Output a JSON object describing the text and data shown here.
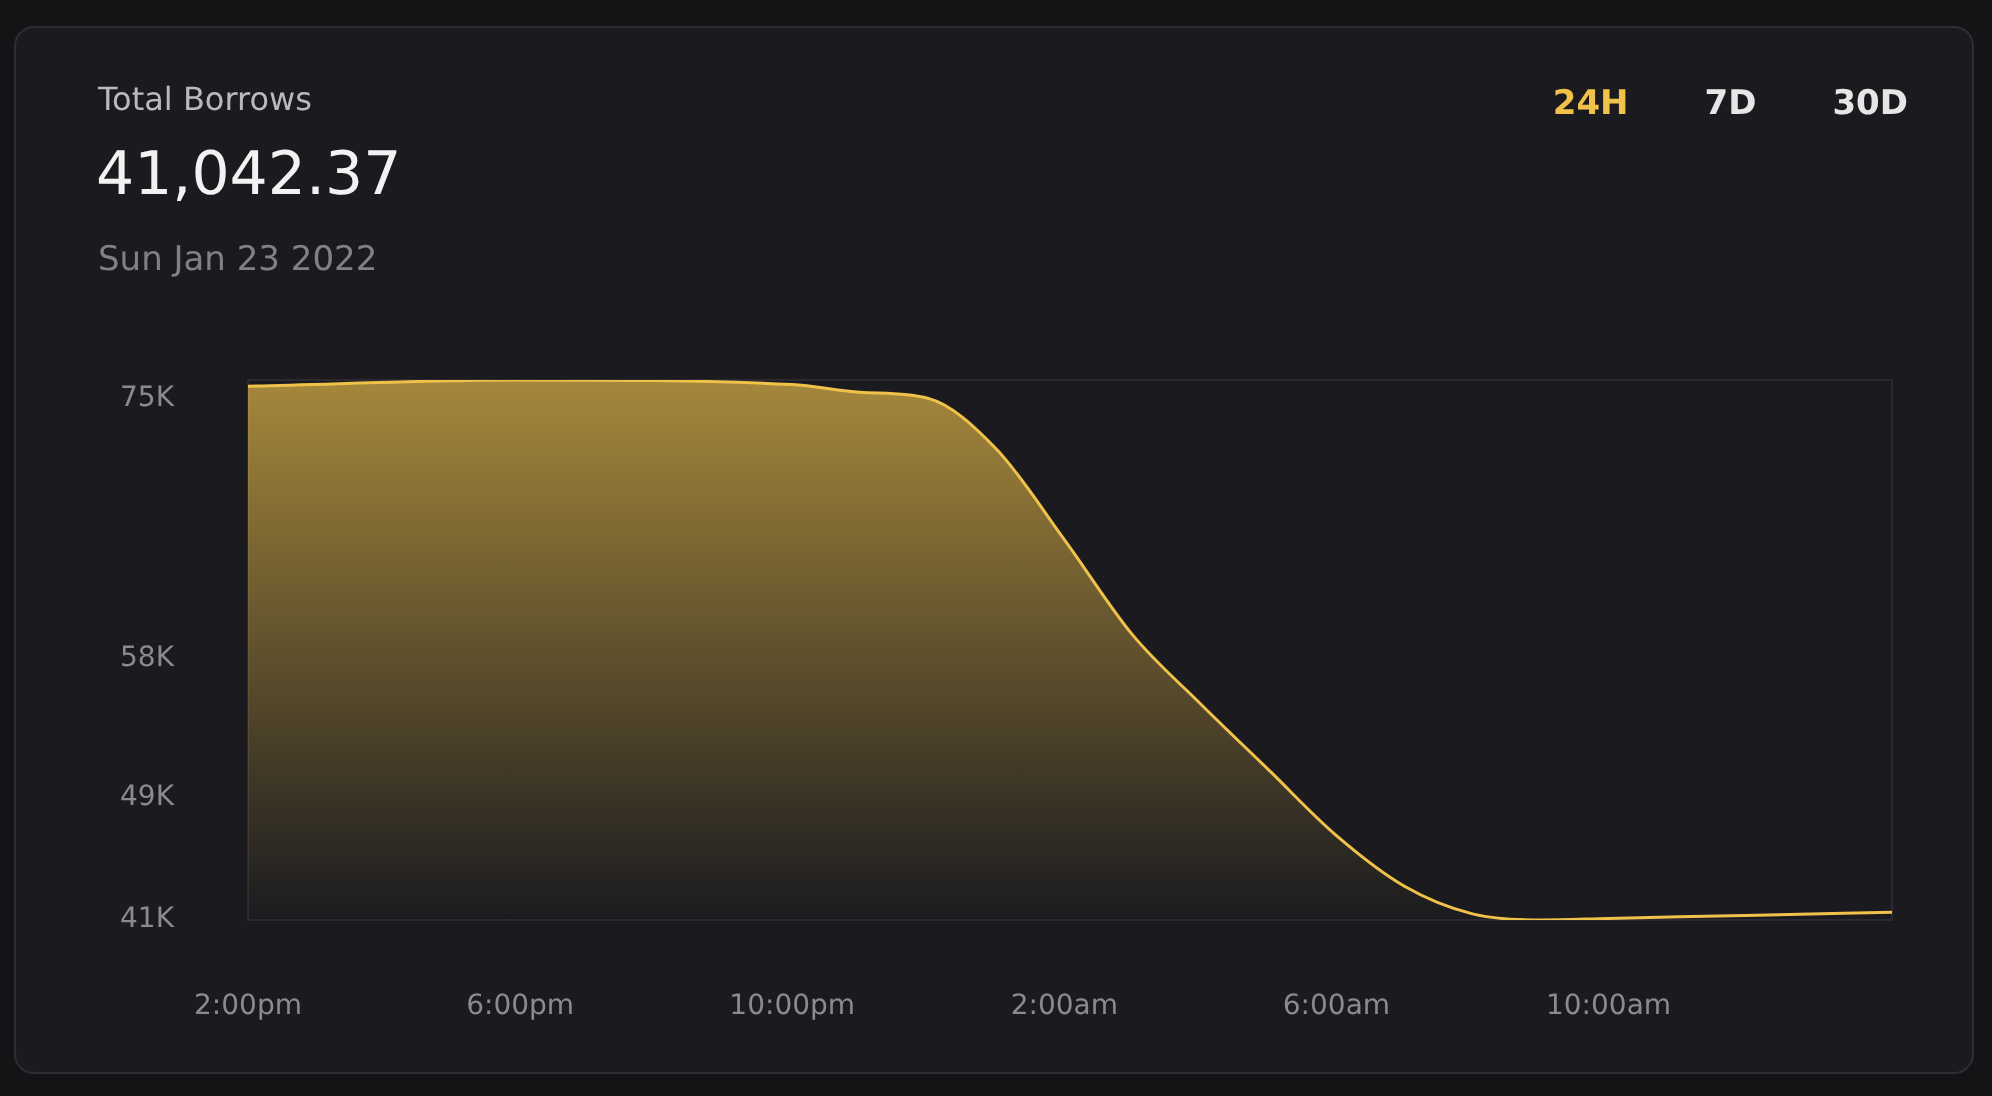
{
  "chart_data": {
    "type": "area",
    "title": "Total Borrows",
    "subtitle": "41,042.37",
    "annotations": [
      "Sun Jan 23 2022",
      "24H",
      "7D",
      "30D"
    ],
    "x": [
      "2022-01-22T14:00",
      "2022-01-22T18:00",
      "2022-01-22T22:00",
      "2022-01-22T23:00",
      "2022-01-23T00:00",
      "2022-01-23T01:00",
      "2022-01-23T02:00",
      "2022-01-23T03:00",
      "2022-01-23T04:00",
      "2022-01-23T05:00",
      "2022-01-23T06:00",
      "2022-01-23T07:00",
      "2022-01-23T08:00",
      "2022-01-23T09:00",
      "2022-01-23T10:00",
      "2022-01-23T12:00",
      "2022-01-23T14:10"
    ],
    "series": [
      {
        "color": "#f0c24a",
        "values": [
          75.8,
          76.2,
          75.9,
          75.4,
          75.0,
          71.7,
          65.8,
          59.6,
          55.1,
          50.8,
          46.5,
          43.2,
          41.4,
          41.0,
          41.1,
          41.3,
          41.5
        ]
      }
    ],
    "xlim": [
      "2022-01-22T14:00",
      "2022-01-23T14:10"
    ],
    "ylim": [
      41,
      76.2
    ],
    "xticks": [
      {
        "value": "2022-01-22T14:00",
        "label": "2:00pm"
      },
      {
        "value": "2022-01-22T18:00",
        "label": "6:00pm"
      },
      {
        "value": "2022-01-22T22:00",
        "label": "10:00pm"
      },
      {
        "value": "2022-01-23T02:00",
        "label": "2:00am"
      },
      {
        "value": "2022-01-23T06:00",
        "label": "6:00am"
      },
      {
        "value": "2022-01-23T10:00",
        "label": "10:00am"
      }
    ],
    "yticks": [
      {
        "value": 41,
        "label": "41K"
      },
      {
        "value": 49,
        "label": "49K"
      },
      {
        "value": 58,
        "label": "58K"
      },
      {
        "value": 75,
        "label": "75K"
      }
    ],
    "grid": false,
    "legend": false,
    "marker": "none",
    "line_style": "solid"
  }
}
